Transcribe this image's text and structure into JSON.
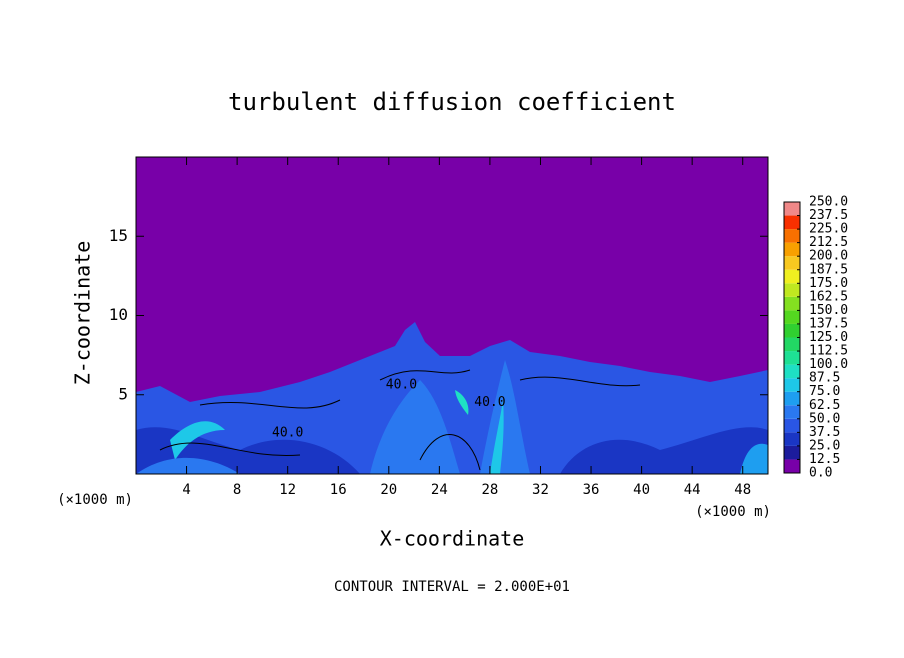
{
  "chart_data": {
    "type": "contour",
    "title": "turbulent diffusion coefficient",
    "x_label": "X-coordinate",
    "y_label": "Z-coordinate",
    "x_unit_labels": [
      "(×1000 m)",
      "(×1000 m)"
    ],
    "footer": "CONTOUR INTERVAL = 2.000E+01",
    "xlim": [
      0,
      50
    ],
    "ylim": [
      0,
      20
    ],
    "xticks": [
      4,
      8,
      12,
      16,
      20,
      24,
      28,
      32,
      36,
      40,
      44,
      48
    ],
    "yticks": [
      5,
      10,
      15
    ],
    "annotations": [
      {
        "text": "40.0",
        "x": 12,
        "y": 2.6
      },
      {
        "text": "40.0",
        "x": 21,
        "y": 5.6
      },
      {
        "text": "40.0",
        "x": 28,
        "y": 4.5
      }
    ],
    "colorbar": {
      "levels": [
        {
          "value": 0,
          "label": "0.0"
        },
        {
          "value": 12.5,
          "label": "12.5"
        },
        {
          "value": 25,
          "label": "25.0"
        },
        {
          "value": 37.5,
          "label": "37.5"
        },
        {
          "value": 50,
          "label": "50.0"
        },
        {
          "value": 62.5,
          "label": "62.5"
        },
        {
          "value": 75,
          "label": "75.0"
        },
        {
          "value": 87.5,
          "label": "87.5"
        },
        {
          "value": 100,
          "label": "100.0"
        },
        {
          "value": 112.5,
          "label": "112.5"
        },
        {
          "value": 125,
          "label": "125.0"
        },
        {
          "value": 137.5,
          "label": "137.5"
        },
        {
          "value": 150,
          "label": "150.0"
        },
        {
          "value": 162.5,
          "label": "162.5"
        },
        {
          "value": 175,
          "label": "175.0"
        },
        {
          "value": 187.5,
          "label": "187.5"
        },
        {
          "value": 200,
          "label": "200.0"
        },
        {
          "value": 212.5,
          "label": "212.5"
        },
        {
          "value": 225,
          "label": "225.0"
        },
        {
          "value": 237.5,
          "label": "237.5"
        },
        {
          "value": 250,
          "label": "250.0"
        }
      ],
      "colors": [
        "#7800a8",
        "#1c1c9c",
        "#1a36c4",
        "#2a56e4",
        "#2a78f0",
        "#1e9ef0",
        "#1ec8e8",
        "#1ee0c4",
        "#1ee094",
        "#22d864",
        "#30d030",
        "#54d820",
        "#84e020",
        "#c0e820",
        "#f0f020",
        "#f8c820",
        "#f8a000",
        "#f87000",
        "#f83000",
        "#f08888"
      ]
    }
  }
}
